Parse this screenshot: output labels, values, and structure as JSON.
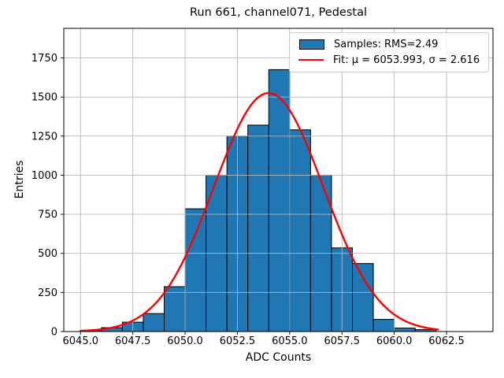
{
  "figure": {
    "title": "Run 661, channel071, Pedestal",
    "xlabel": "ADC Counts",
    "ylabel": "Entries"
  },
  "legend": {
    "position": "upper right",
    "samples_label": "Samples: RMS=2.49",
    "fit_label": "Fit: μ = 6053.993, σ = 2.616",
    "samples_swatch_color": "#1f77b4",
    "fit_line_color": "#ff0000"
  },
  "chart_data": {
    "type": "bar",
    "subtype": "histogram",
    "title": "Run 661, channel071, Pedestal",
    "xlabel": "ADC Counts",
    "ylabel": "Entries",
    "bin_start": 6045,
    "bin_width": 1,
    "bin_left_edges": [
      6045,
      6046,
      6047,
      6048,
      6049,
      6050,
      6051,
      6052,
      6053,
      6054,
      6055,
      6056,
      6057,
      6058,
      6059,
      6060,
      6061
    ],
    "values": [
      8,
      25,
      60,
      115,
      287,
      785,
      1000,
      1250,
      1320,
      1675,
      1290,
      1000,
      535,
      435,
      78,
      22,
      12
    ],
    "samples_rms": 2.49,
    "fit": {
      "shape": "gaussian",
      "mu": 6053.993,
      "sigma": 2.616,
      "amplitude": 1525,
      "domain": [
        6045,
        6062.1
      ]
    },
    "x_ticks": [
      {
        "v": 6045.0,
        "label": "6045.0"
      },
      {
        "v": 6047.5,
        "label": "6047.5"
      },
      {
        "v": 6050.0,
        "label": "6050.0"
      },
      {
        "v": 6052.5,
        "label": "6052.5"
      },
      {
        "v": 6055.0,
        "label": "6055.0"
      },
      {
        "v": 6057.5,
        "label": "6057.5"
      },
      {
        "v": 6060.0,
        "label": "6060.0"
      },
      {
        "v": 6062.5,
        "label": "6062.5"
      }
    ],
    "y_ticks": [
      {
        "v": 0,
        "label": "0"
      },
      {
        "v": 250,
        "label": "250"
      },
      {
        "v": 500,
        "label": "500"
      },
      {
        "v": 750,
        "label": "750"
      },
      {
        "v": 1000,
        "label": "1000"
      },
      {
        "v": 1250,
        "label": "1250"
      },
      {
        "v": 1500,
        "label": "1500"
      },
      {
        "v": 1750,
        "label": "1750"
      }
    ],
    "xlim": [
      6044.2,
      6064.72
    ],
    "ylim": [
      0,
      1939
    ],
    "grid": true,
    "grid_color": "#b8b8b8",
    "legend_position": "upper right",
    "bar_color": "#1f77b4",
    "bar_edge_color": "#000000",
    "fit_color": "#ff0000"
  }
}
